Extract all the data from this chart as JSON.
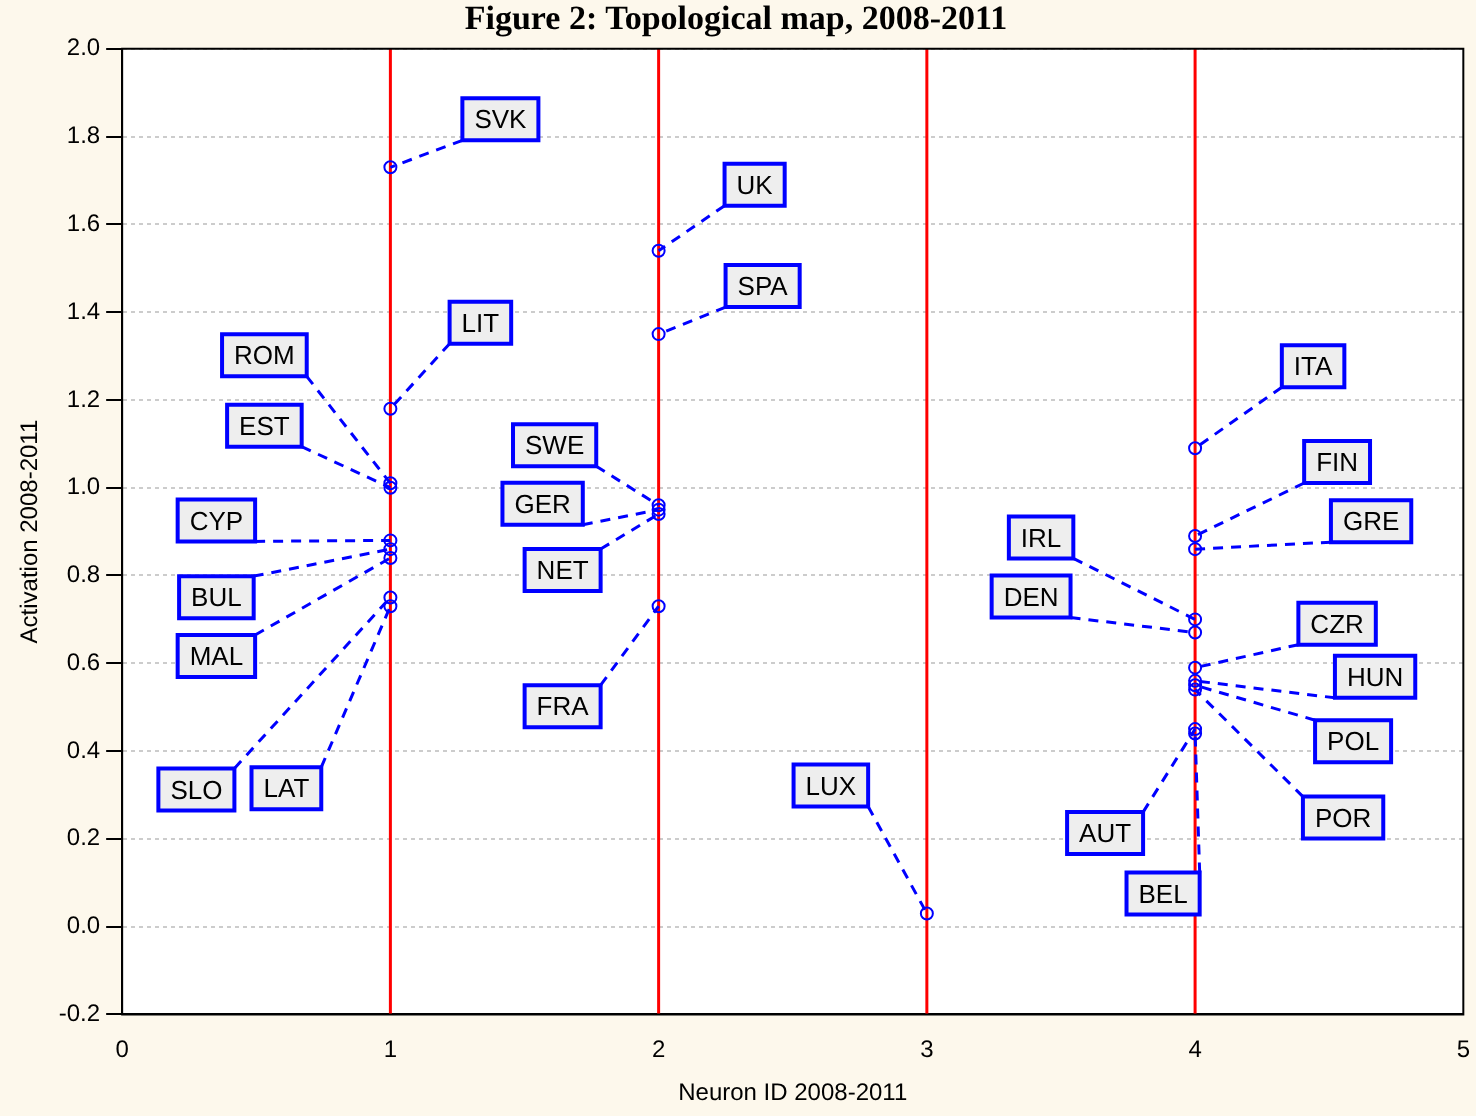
{
  "chart_data": {
    "type": "scatter",
    "title": "Figure 2: Topological map, 2008-2011",
    "xlabel": "Neuron ID 2008-2011",
    "ylabel": "Activation 2008-2011",
    "xlim": [
      0,
      5
    ],
    "xticks": [
      0,
      1,
      2,
      3,
      4,
      5
    ],
    "ylim": [
      -0.2,
      2.0
    ],
    "yticks": [
      -0.2,
      {
        "value": 0,
        "label": "0.0"
      },
      0.2,
      0.4,
      0.6,
      0.8,
      {
        "value": 1,
        "label": "1.0"
      },
      1.2,
      1.4,
      1.6,
      1.8,
      {
        "value": 2,
        "label": "2.0"
      }
    ],
    "grid": "y",
    "legend": false,
    "marker": "circle",
    "series": [
      {
        "color": "#0000ff",
        "x": [
          1,
          1,
          1,
          1,
          1,
          1,
          1,
          1,
          1,
          2,
          2,
          2,
          2,
          2,
          2,
          3,
          4,
          4,
          4,
          4,
          4,
          4,
          4,
          4,
          4,
          4,
          4
        ],
        "values": [
          1.73,
          1.18,
          1.01,
          1.0,
          0.88,
          0.86,
          0.84,
          0.75,
          0.73,
          1.54,
          1.35,
          0.96,
          0.95,
          0.94,
          0.73,
          0.03,
          1.09,
          0.89,
          0.86,
          0.7,
          0.67,
          0.59,
          0.56,
          0.55,
          0.54,
          0.45,
          0.44
        ]
      }
    ],
    "ref_lines": [
      {
        "axis": "x",
        "value": 1,
        "color": "#ff0000"
      },
      {
        "axis": "x",
        "value": 2,
        "color": "#ff0000"
      },
      {
        "axis": "x",
        "value": 3,
        "color": "#ff0000"
      },
      {
        "axis": "x",
        "value": 4,
        "color": "#ff0000"
      }
    ],
    "annotations": [
      {
        "text": "SVK",
        "x": 1,
        "y": 1.73
      },
      {
        "text": "LIT",
        "x": 1,
        "y": 1.18
      },
      {
        "text": "ROM",
        "x": 1,
        "y": 1.01
      },
      {
        "text": "EST",
        "x": 1,
        "y": 1.0
      },
      {
        "text": "CYP",
        "x": 1,
        "y": 0.88
      },
      {
        "text": "BUL",
        "x": 1,
        "y": 0.86
      },
      {
        "text": "MAL",
        "x": 1,
        "y": 0.84
      },
      {
        "text": "SLO",
        "x": 1,
        "y": 0.75
      },
      {
        "text": "LAT",
        "x": 1,
        "y": 0.73
      },
      {
        "text": "UK",
        "x": 2,
        "y": 1.54
      },
      {
        "text": "SPA",
        "x": 2,
        "y": 1.35
      },
      {
        "text": "SWE",
        "x": 2,
        "y": 0.96
      },
      {
        "text": "GER",
        "x": 2,
        "y": 0.95
      },
      {
        "text": "NET",
        "x": 2,
        "y": 0.94
      },
      {
        "text": "FRA",
        "x": 2,
        "y": 0.73
      },
      {
        "text": "LUX",
        "x": 3,
        "y": 0.03
      },
      {
        "text": "ITA",
        "x": 4,
        "y": 1.09
      },
      {
        "text": "FIN",
        "x": 4,
        "y": 0.89
      },
      {
        "text": "GRE",
        "x": 4,
        "y": 0.86
      },
      {
        "text": "IRL",
        "x": 4,
        "y": 0.7
      },
      {
        "text": "DEN",
        "x": 4,
        "y": 0.67
      },
      {
        "text": "CZR",
        "x": 4,
        "y": 0.59
      },
      {
        "text": "HUN",
        "x": 4,
        "y": 0.56
      },
      {
        "text": "POL",
        "x": 4,
        "y": 0.55
      },
      {
        "text": "POR",
        "x": 4,
        "y": 0.54
      },
      {
        "text": "AUT",
        "x": 4,
        "y": 0.45
      },
      {
        "text": "BEL",
        "x": 4,
        "y": 0.44
      }
    ]
  }
}
